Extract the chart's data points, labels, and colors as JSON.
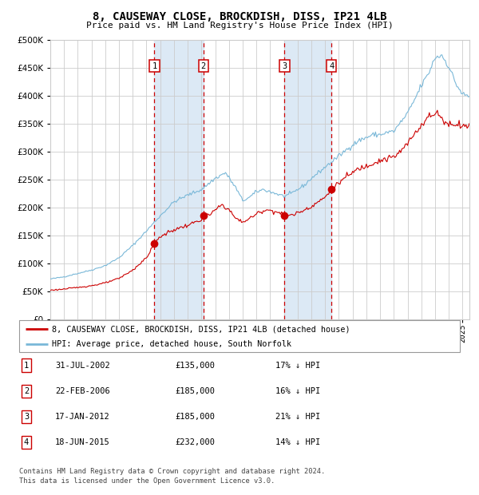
{
  "title": "8, CAUSEWAY CLOSE, BROCKDISH, DISS, IP21 4LB",
  "subtitle": "Price paid vs. HM Land Registry's House Price Index (HPI)",
  "legend_line1": "8, CAUSEWAY CLOSE, BROCKDISH, DISS, IP21 4LB (detached house)",
  "legend_line2": "HPI: Average price, detached house, South Norfolk",
  "footer1": "Contains HM Land Registry data © Crown copyright and database right 2024.",
  "footer2": "This data is licensed under the Open Government Licence v3.0.",
  "transactions": [
    {
      "num": 1,
      "date": "31-JUL-2002",
      "price": 135000,
      "pct": "17%",
      "dir": "↓"
    },
    {
      "num": 2,
      "date": "22-FEB-2006",
      "price": 185000,
      "pct": "16%",
      "dir": "↓"
    },
    {
      "num": 3,
      "date": "17-JAN-2012",
      "price": 185000,
      "pct": "21%",
      "dir": "↓"
    },
    {
      "num": 4,
      "date": "18-JUN-2015",
      "price": 232000,
      "pct": "14%",
      "dir": "↓"
    }
  ],
  "transaction_dates_num": [
    2002.58,
    2006.14,
    2012.05,
    2015.46
  ],
  "transaction_prices": [
    135000,
    185000,
    185000,
    232000
  ],
  "hpi_color": "#7ab8d8",
  "price_color": "#cc0000",
  "background_color": "#ffffff",
  "plot_bg_color": "#ffffff",
  "shaded_color": "#dce9f5",
  "grid_color": "#cccccc",
  "vline_color": "#cc0000",
  "yticks": [
    0,
    50000,
    100000,
    150000,
    200000,
    250000,
    300000,
    350000,
    400000,
    450000,
    500000
  ],
  "xlim_start": 1995.0,
  "xlim_end": 2025.5,
  "hpi_anchors": [
    [
      1995.0,
      72000
    ],
    [
      1996.0,
      76000
    ],
    [
      1997.0,
      82000
    ],
    [
      1998.0,
      88000
    ],
    [
      1999.0,
      96000
    ],
    [
      2000.0,
      110000
    ],
    [
      2001.0,
      132000
    ],
    [
      2002.0,
      158000
    ],
    [
      2003.0,
      185000
    ],
    [
      2004.0,
      210000
    ],
    [
      2005.0,
      222000
    ],
    [
      2006.0,
      232000
    ],
    [
      2007.0,
      252000
    ],
    [
      2007.75,
      262000
    ],
    [
      2008.5,
      235000
    ],
    [
      2009.0,
      212000
    ],
    [
      2009.5,
      218000
    ],
    [
      2010.0,
      228000
    ],
    [
      2010.5,
      232000
    ],
    [
      2011.0,
      228000
    ],
    [
      2011.5,
      224000
    ],
    [
      2012.0,
      220000
    ],
    [
      2012.5,
      224000
    ],
    [
      2013.0,
      232000
    ],
    [
      2013.5,
      240000
    ],
    [
      2014.0,
      252000
    ],
    [
      2014.5,
      262000
    ],
    [
      2015.0,
      272000
    ],
    [
      2015.5,
      282000
    ],
    [
      2016.0,
      292000
    ],
    [
      2016.5,
      302000
    ],
    [
      2017.0,
      312000
    ],
    [
      2017.5,
      320000
    ],
    [
      2018.0,
      325000
    ],
    [
      2018.5,
      330000
    ],
    [
      2019.0,
      330000
    ],
    [
      2019.5,
      334000
    ],
    [
      2020.0,
      336000
    ],
    [
      2020.5,
      352000
    ],
    [
      2021.0,
      368000
    ],
    [
      2021.5,
      392000
    ],
    [
      2022.0,
      418000
    ],
    [
      2022.5,
      438000
    ],
    [
      2023.0,
      468000
    ],
    [
      2023.5,
      472000
    ],
    [
      2024.0,
      452000
    ],
    [
      2024.5,
      422000
    ],
    [
      2025.0,
      402000
    ],
    [
      2025.5,
      398000
    ]
  ],
  "price_anchors": [
    [
      1995.0,
      52000
    ],
    [
      1996.0,
      54000
    ],
    [
      1997.0,
      57000
    ],
    [
      1998.0,
      60000
    ],
    [
      1999.0,
      65000
    ],
    [
      2000.0,
      73000
    ],
    [
      2001.0,
      88000
    ],
    [
      2002.0,
      110000
    ],
    [
      2002.58,
      135000
    ],
    [
      2003.0,
      148000
    ],
    [
      2004.0,
      160000
    ],
    [
      2005.0,
      168000
    ],
    [
      2006.0,
      178000
    ],
    [
      2006.14,
      185000
    ],
    [
      2006.5,
      185000
    ],
    [
      2007.0,
      195000
    ],
    [
      2007.5,
      205000
    ],
    [
      2008.0,
      196000
    ],
    [
      2008.5,
      180000
    ],
    [
      2009.0,
      174000
    ],
    [
      2009.5,
      180000
    ],
    [
      2010.0,
      188000
    ],
    [
      2010.5,
      195000
    ],
    [
      2011.0,
      195000
    ],
    [
      2011.5,
      192000
    ],
    [
      2012.0,
      186000
    ],
    [
      2012.05,
      185000
    ],
    [
      2012.5,
      186000
    ],
    [
      2013.0,
      190000
    ],
    [
      2013.5,
      196000
    ],
    [
      2014.0,
      202000
    ],
    [
      2014.5,
      210000
    ],
    [
      2015.0,
      218000
    ],
    [
      2015.46,
      232000
    ],
    [
      2015.5,
      232000
    ],
    [
      2016.0,
      244000
    ],
    [
      2016.5,
      254000
    ],
    [
      2017.0,
      262000
    ],
    [
      2017.5,
      270000
    ],
    [
      2018.0,
      274000
    ],
    [
      2018.5,
      280000
    ],
    [
      2019.0,
      284000
    ],
    [
      2019.5,
      287000
    ],
    [
      2020.0,
      290000
    ],
    [
      2020.5,
      300000
    ],
    [
      2021.0,
      314000
    ],
    [
      2021.5,
      332000
    ],
    [
      2022.0,
      348000
    ],
    [
      2022.5,
      362000
    ],
    [
      2023.0,
      366000
    ],
    [
      2023.25,
      370000
    ],
    [
      2023.5,
      358000
    ],
    [
      2024.0,
      348000
    ],
    [
      2024.5,
      350000
    ],
    [
      2025.0,
      347000
    ],
    [
      2025.5,
      344000
    ]
  ]
}
